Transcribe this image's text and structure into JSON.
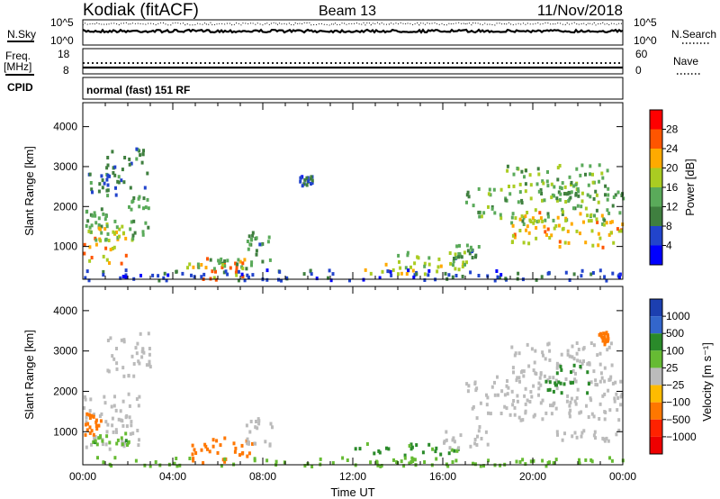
{
  "header": {
    "station": "Kodiak (fitACF)",
    "beam": "Beam 13",
    "date": "11/Nov/2018"
  },
  "noise_panel": {
    "left_label": "N.Sky",
    "left_ticks": [
      "10^5",
      "10^0"
    ],
    "right_label": "N.Search",
    "right_ticks": [
      "10^5",
      "10^0"
    ]
  },
  "freq_panel": {
    "left_label_line1": "Freq.",
    "left_label_line2": "[MHz]",
    "left_ticks": [
      "18",
      "8"
    ],
    "right_label": "Nave",
    "right_ticks": [
      "60",
      "0"
    ]
  },
  "cpid": {
    "label": "CPID",
    "text": "normal (fast) 151 RF"
  },
  "colors": {
    "power_scale": [
      "#0000ff",
      "#2244cc",
      "#3f7f3f",
      "#5aaa5a",
      "#aacc22",
      "#ffaa00",
      "#ff5500",
      "#ff0000"
    ],
    "velocity_scale": [
      "#1c3fb0",
      "#3366cc",
      "#2a8a2a",
      "#66bb33",
      "#bbbbbb",
      "#ffbb00",
      "#ff7700",
      "#ff2200",
      "#ee0000"
    ]
  },
  "chart_data": [
    {
      "type": "heatmap",
      "panel": "power",
      "ylabel": "Slant Range [km]",
      "ylim": [
        180,
        4600
      ],
      "y_ticks": [
        "1000",
        "2000",
        "3000",
        "4000"
      ],
      "x_ticks": [
        "00:00",
        "04:00",
        "08:00",
        "12:00",
        "16:00",
        "20:00",
        "00:00"
      ],
      "xlim_hours": [
        0,
        24
      ],
      "colorbar": {
        "label": "Power [dB]",
        "ticks": [
          "4",
          "8",
          "12",
          "16",
          "20",
          "24",
          "28"
        ],
        "range": [
          0,
          32
        ]
      },
      "regions": [
        {
          "t": [
            0.1,
            1.0
          ],
          "r": [
            1500,
            2000
          ],
          "level": 12
        },
        {
          "t": [
            0.0,
            2.0
          ],
          "r": [
            600,
            1500
          ],
          "level": 22
        },
        {
          "t": [
            0.1,
            2.3
          ],
          "r": [
            1200,
            1700
          ],
          "level": 16
        },
        {
          "t": [
            1.0,
            3.0
          ],
          "r": [
            2500,
            3500
          ],
          "level": 10
        },
        {
          "t": [
            0.2,
            1.6
          ],
          "r": [
            2300,
            2900
          ],
          "level": 9
        },
        {
          "t": [
            2.0,
            3.0
          ],
          "r": [
            1300,
            2300
          ],
          "level": 13
        },
        {
          "t": [
            4.6,
            7.2
          ],
          "r": [
            200,
            800
          ],
          "level": 23
        },
        {
          "t": [
            5.0,
            7.5
          ],
          "r": [
            450,
            750
          ],
          "level": 14
        },
        {
          "t": [
            7.2,
            8.3
          ],
          "r": [
            650,
            1400
          ],
          "level": 11
        },
        {
          "t": [
            9.6,
            10.2
          ],
          "r": [
            2500,
            2800
          ],
          "level": 7
        },
        {
          "t": [
            12.5,
            17.0
          ],
          "r": [
            350,
            650
          ],
          "level": 20
        },
        {
          "t": [
            13.8,
            17.0
          ],
          "r": [
            500,
            900
          ],
          "level": 16
        },
        {
          "t": [
            16.4,
            17.6
          ],
          "r": [
            700,
            1100
          ],
          "level": 11
        },
        {
          "t": [
            17.0,
            24.0
          ],
          "r": [
            1600,
            2500
          ],
          "level": 14
        },
        {
          "t": [
            19.0,
            24.0
          ],
          "r": [
            1000,
            1900
          ],
          "level": 21
        },
        {
          "t": [
            18.7,
            23.3
          ],
          "r": [
            2500,
            3100
          ],
          "level": 15
        },
        {
          "t": [
            20.3,
            22.0
          ],
          "r": [
            2200,
            2800
          ],
          "level": 14
        },
        {
          "t": [
            0.0,
            24.0
          ],
          "r": [
            180,
            450
          ],
          "level": 6
        }
      ]
    },
    {
      "type": "heatmap",
      "panel": "velocity",
      "ylabel": "Slant Range [km]",
      "ylim": [
        180,
        4600
      ],
      "y_ticks": [
        "1000",
        "2000",
        "3000",
        "4000"
      ],
      "x_ticks": [
        "00:00",
        "04:00",
        "08:00",
        "12:00",
        "16:00",
        "20:00",
        "00:00"
      ],
      "xlabel": "Time UT",
      "xlim_hours": [
        0,
        24
      ],
      "colorbar": {
        "label": "Velocity [m s⁻¹]",
        "ticks": [
          "1000",
          "500",
          "100",
          "25",
          "−25",
          "−100",
          "−500",
          "−1000"
        ]
      },
      "regions": [
        {
          "t": [
            0.0,
            2.5
          ],
          "r": [
            600,
            2000
          ],
          "level": 0
        },
        {
          "t": [
            0.0,
            0.8
          ],
          "r": [
            900,
            1500
          ],
          "level": -200
        },
        {
          "t": [
            0.3,
            2.0
          ],
          "r": [
            700,
            1000
          ],
          "level": 80
        },
        {
          "t": [
            1.0,
            3.0
          ],
          "r": [
            2400,
            3500
          ],
          "level": 0
        },
        {
          "t": [
            4.5,
            7.5
          ],
          "r": [
            250,
            900
          ],
          "level": -200
        },
        {
          "t": [
            7.2,
            8.4
          ],
          "r": [
            700,
            1400
          ],
          "level": 0
        },
        {
          "t": [
            12.0,
            17.0
          ],
          "r": [
            450,
            750
          ],
          "level": 150
        },
        {
          "t": [
            16.0,
            18.0
          ],
          "r": [
            600,
            1200
          ],
          "level": 0
        },
        {
          "t": [
            17.0,
            24.0
          ],
          "r": [
            1300,
            2400
          ],
          "level": 0
        },
        {
          "t": [
            19.0,
            23.5
          ],
          "r": [
            2300,
            3300
          ],
          "level": 0
        },
        {
          "t": [
            20.5,
            22.5
          ],
          "r": [
            2000,
            2700
          ],
          "level": 200
        },
        {
          "t": [
            22.8,
            23.3
          ],
          "r": [
            3200,
            3500
          ],
          "level": -300
        },
        {
          "t": [
            21.0,
            24.0
          ],
          "r": [
            800,
            1100
          ],
          "level": 0
        },
        {
          "t": [
            0.0,
            24.0
          ],
          "r": [
            180,
            400
          ],
          "level": 60
        }
      ]
    }
  ]
}
